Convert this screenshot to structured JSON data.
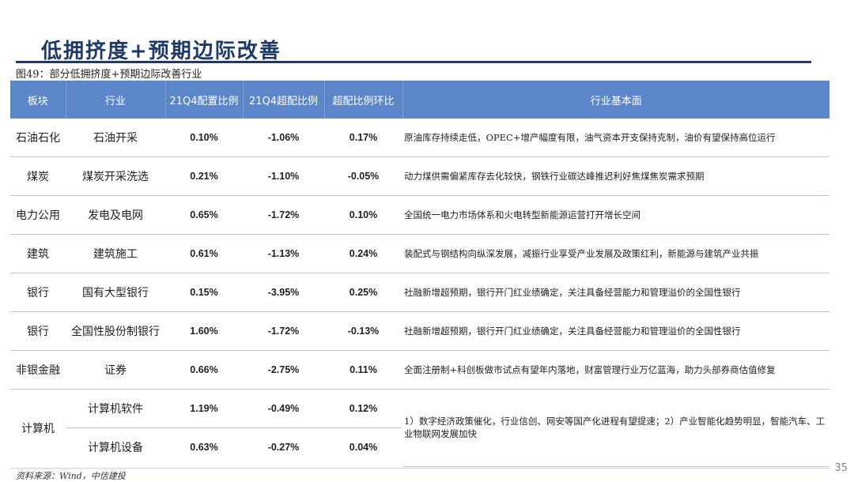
{
  "title": "低拥挤度+预期边际改善",
  "caption": "图49：部分低拥挤度+预期边际改善行业",
  "headers": [
    "板块",
    "行业",
    "21Q4配置比例",
    "21Q4超配比例",
    "超配比例环比",
    "行业基本面"
  ],
  "rows": [
    {
      "sector": "石油石化",
      "industry": "石油开采",
      "alloc": "0.10%",
      "over": "-1.06%",
      "change": "0.17%",
      "desc": "原油库存持续走低，OPEC+增产幅度有限，油气资本开支保持克制，油价有望保持高位运行"
    },
    {
      "sector": "煤炭",
      "industry": "煤炭开采洗选",
      "alloc": "0.21%",
      "over": "-1.10%",
      "change": "-0.05%",
      "desc": "动力煤供需偏紧库存去化较快，钢铁行业碳达峰推迟利好焦煤焦炭需求预期"
    },
    {
      "sector": "电力公用",
      "industry": "发电及电网",
      "alloc": "0.65%",
      "over": "-1.72%",
      "change": "0.10%",
      "desc": "全国统一电力市场体系和火电转型新能源运营打开增长空间"
    },
    {
      "sector": "建筑",
      "industry": "建筑施工",
      "alloc": "0.61%",
      "over": "-1.13%",
      "change": "0.24%",
      "desc": "装配式与钢结构向纵深发展，减振行业享受产业发展及政策红利，新能源与建筑产业共振"
    },
    {
      "sector": "银行",
      "industry": "国有大型银行",
      "alloc": "0.15%",
      "over": "-3.95%",
      "change": "0.25%",
      "desc": "社融新增超预期，银行开门红业绩确定，关注具备经营能力和管理溢价的全国性银行"
    },
    {
      "sector": "银行",
      "industry": "全国性股份制银行",
      "alloc": "1.60%",
      "over": "-1.72%",
      "change": "-0.13%",
      "desc": "社融新增超预期，银行开门红业绩确定，关注具备经营能力和管理溢价的全国性银行"
    },
    {
      "sector": "非银金融",
      "industry": "证券",
      "alloc": "0.66%",
      "over": "-2.75%",
      "change": "0.11%",
      "desc": "全面注册制+科创板做市试点有望年内落地，财富管理行业万亿蓝海，助力头部券商估值修复"
    }
  ],
  "computer": {
    "sector": "计算机",
    "desc": "1）数字经济政策催化，行业信创、网安等国产化进程有望提速；2）产业智能化趋势明显，智能汽车、工业物联网发展加快",
    "sub": [
      {
        "industry": "计算机软件",
        "alloc": "1.19%",
        "over": "-0.49%",
        "change": "0.12%"
      },
      {
        "industry": "计算机设备",
        "alloc": "0.63%",
        "over": "-0.27%",
        "change": "0.04%"
      }
    ]
  },
  "source": "资料来源：Wind，中信建投",
  "page_number": "35"
}
